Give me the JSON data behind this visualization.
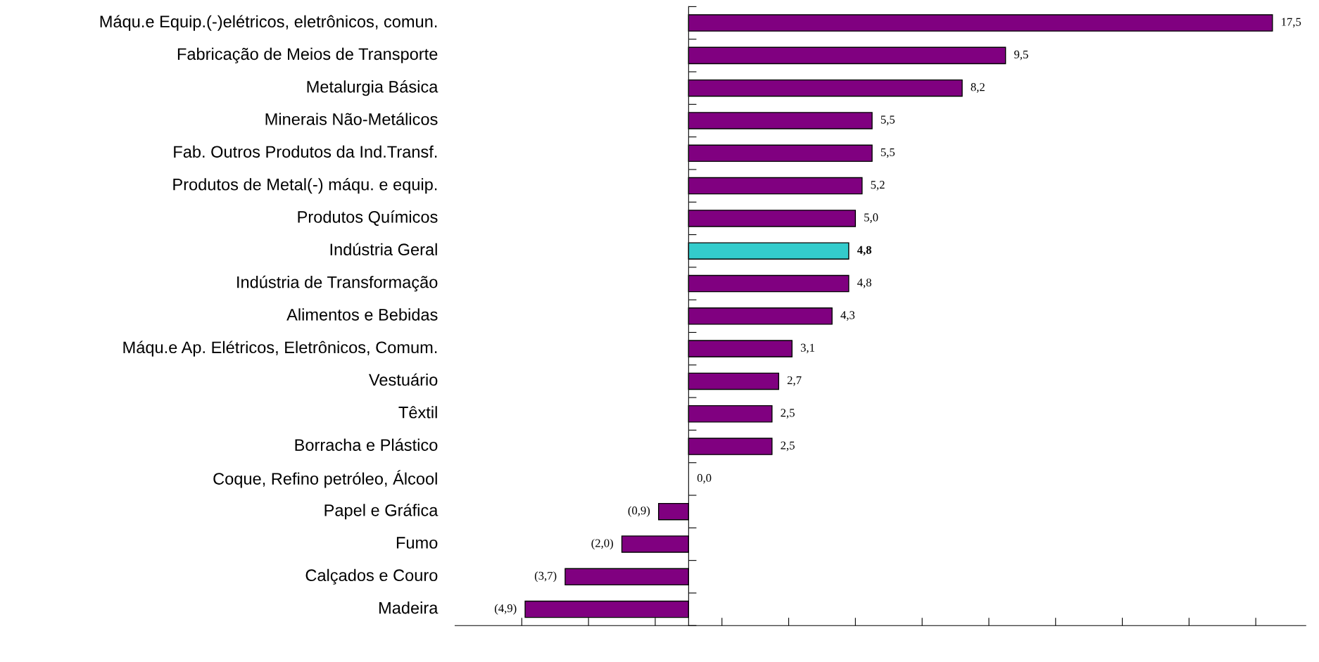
{
  "chart_data": {
    "type": "bar",
    "orientation": "horizontal",
    "categories": [
      "Máqu.e Equip.(-)elétricos, eletrônicos, comun.",
      "Fabricação de Meios de Transporte",
      "Metalurgia Básica",
      "Minerais Não-Metálicos",
      "Fab. Outros Produtos da Ind.Transf.",
      "Produtos de Metal(-) máqu. e equip.",
      "Produtos Químicos",
      "Indústria Geral",
      "Indústria de Transformação",
      "Alimentos e Bebidas",
      "Máqu.e Ap. Elétricos, Eletrônicos, Comum.",
      "Vestuário",
      "Têxtil",
      "Borracha e Plástico",
      "Coque, Refino petróleo, Álcool",
      "Papel e Gráfica",
      "Fumo",
      "Calçados e Couro",
      "Madeira"
    ],
    "values": [
      17.5,
      9.5,
      8.2,
      5.5,
      5.5,
      5.2,
      5.0,
      4.8,
      4.8,
      4.3,
      3.1,
      2.7,
      2.5,
      2.5,
      0.0,
      -0.9,
      -2.0,
      -3.7,
      -4.9
    ],
    "value_labels": [
      "17,5",
      "9,5",
      "8,2",
      "5,5",
      "5,5",
      "5,2",
      "5,0",
      "4,8",
      "4,8",
      "4,3",
      "3,1",
      "2,7",
      "2,5",
      "2,5",
      "0,0",
      "(0,9)",
      "(2,0)",
      "(3,7)",
      "(4,9)"
    ],
    "colors": [
      "#800080",
      "#800080",
      "#800080",
      "#800080",
      "#800080",
      "#800080",
      "#800080",
      "#33cccc",
      "#800080",
      "#800080",
      "#800080",
      "#800080",
      "#800080",
      "#800080",
      "#800080",
      "#800080",
      "#800080",
      "#800080",
      "#800080"
    ],
    "xlim": [
      -7,
      18.5
    ],
    "xticks": [
      {
        "value": -5,
        "label": null
      },
      {
        "value": -3,
        "label": null
      },
      {
        "value": -1,
        "label": null
      },
      {
        "value": 1,
        "label": null
      },
      {
        "value": 3,
        "label": null
      },
      {
        "value": 5,
        "label": null
      },
      {
        "value": 7,
        "label": null
      },
      {
        "value": 9,
        "label": null
      },
      {
        "value": 11,
        "label": null
      },
      {
        "value": 13,
        "label": null
      },
      {
        "value": 15,
        "label": null
      },
      {
        "value": 17,
        "label": null
      }
    ],
    "grid": false,
    "legend": false
  }
}
